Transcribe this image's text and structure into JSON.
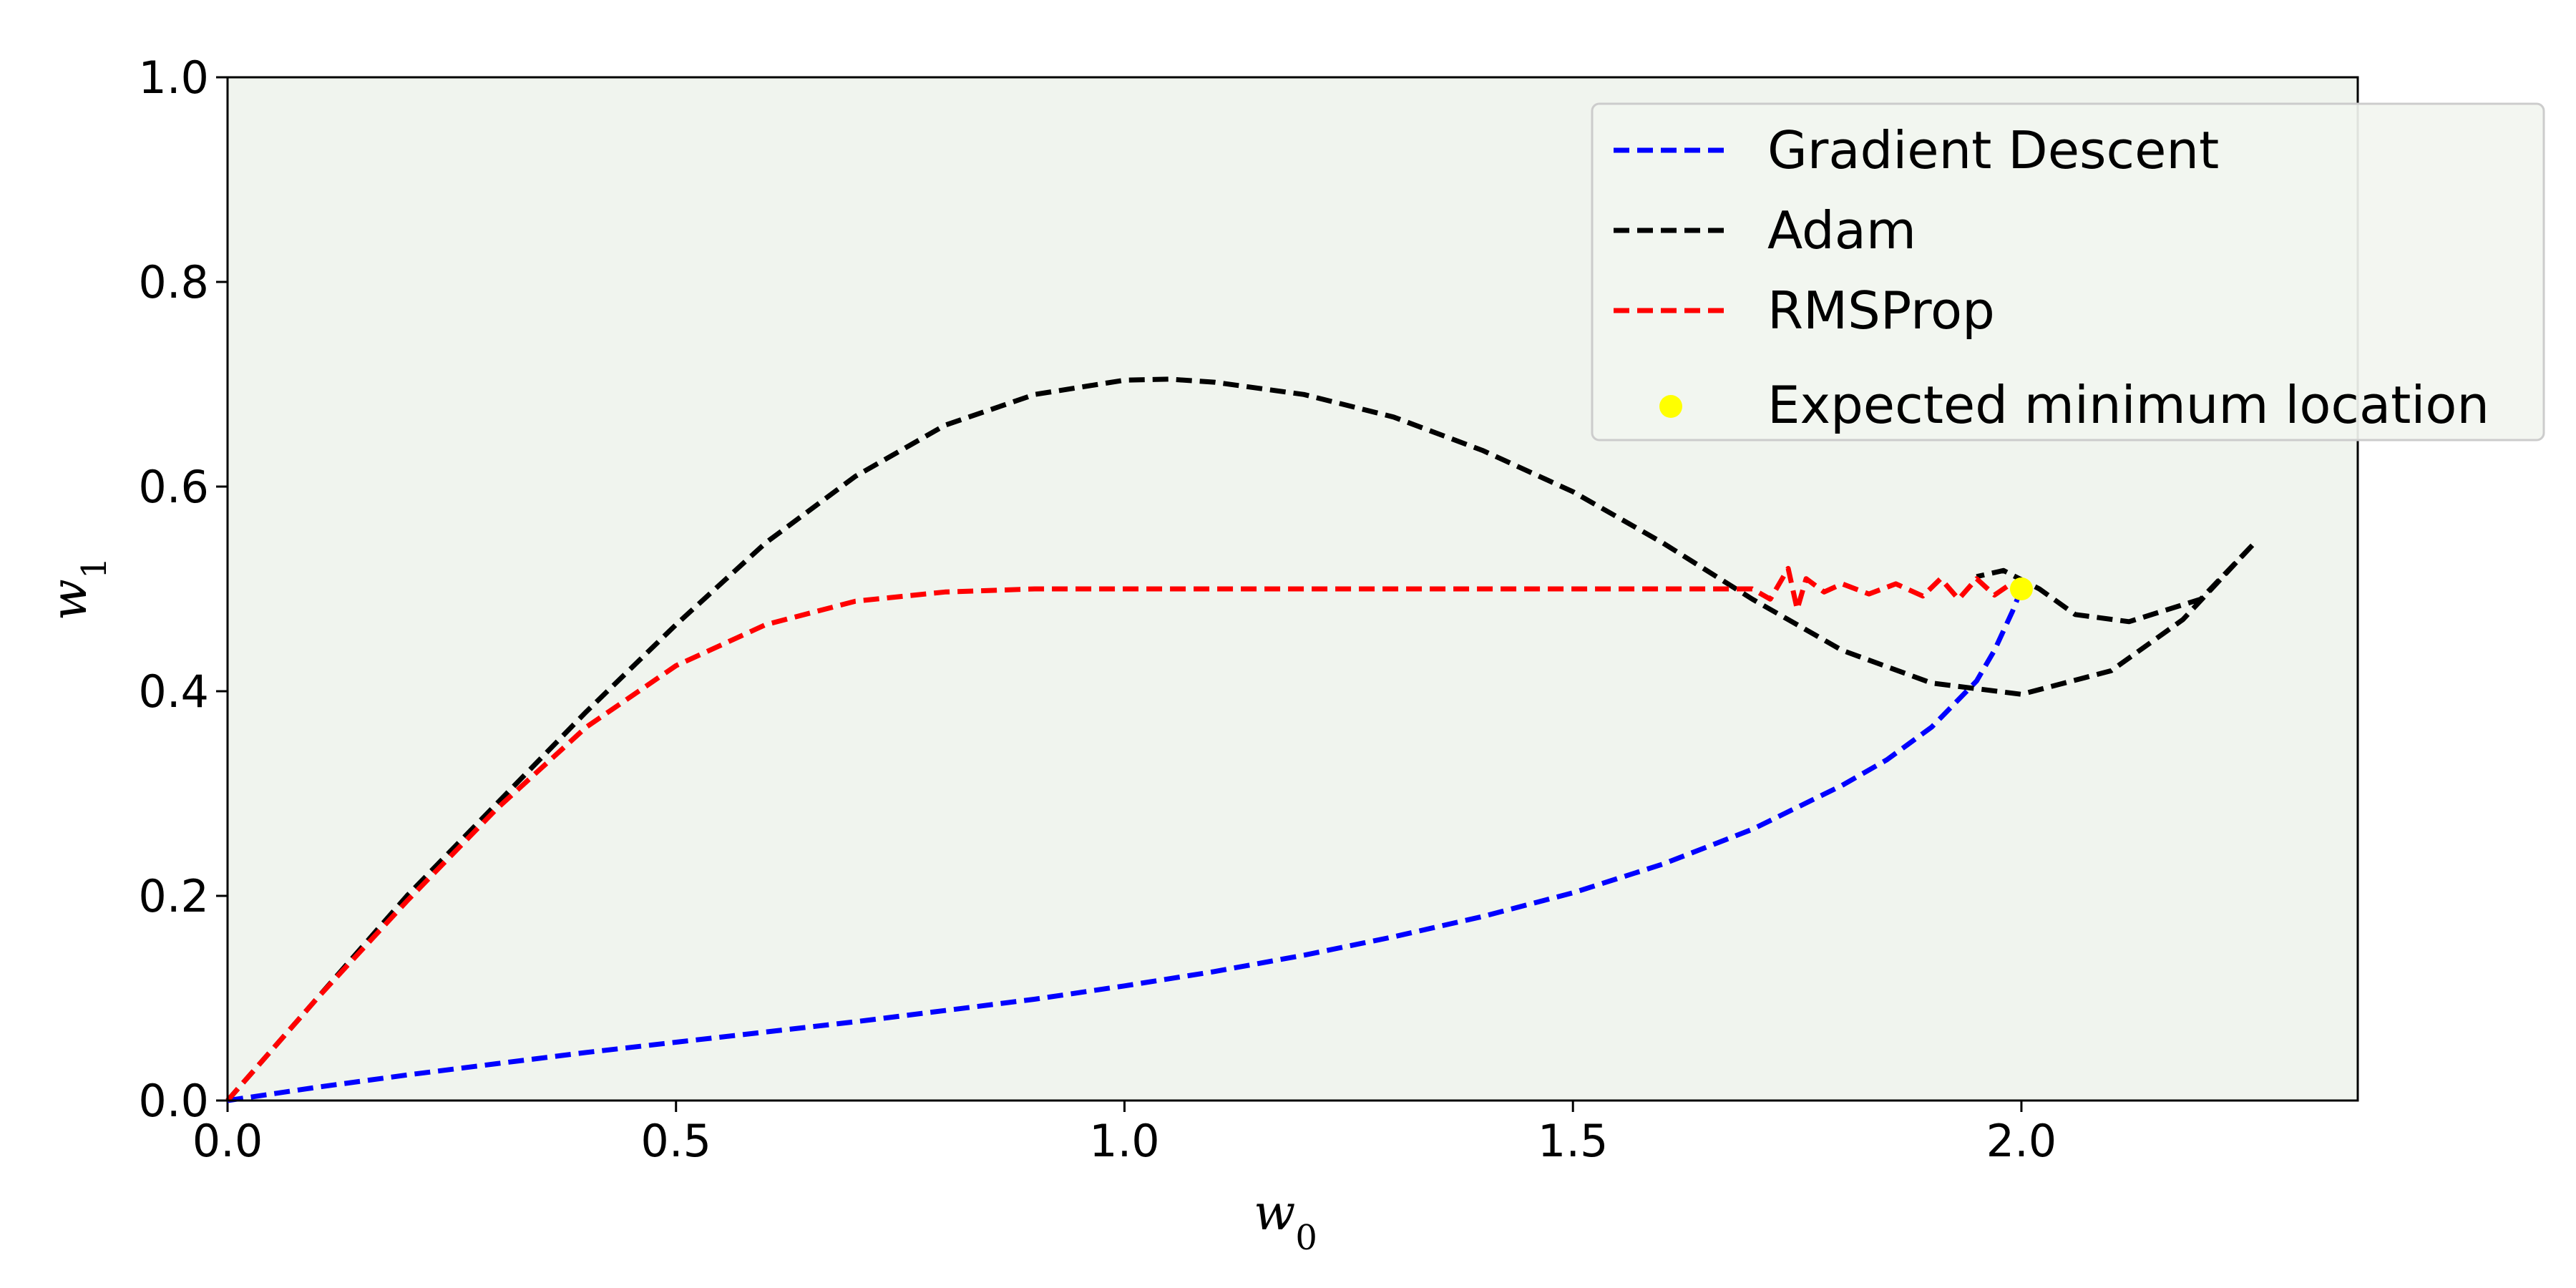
{
  "chart_data": {
    "type": "line",
    "title": "",
    "xlabel": "w",
    "xlabel_sub": "0",
    "ylabel": "w",
    "ylabel_sub": "1",
    "xlim": [
      0,
      2.375
    ],
    "ylim": [
      0,
      1.0
    ],
    "xticks": [
      "0.0",
      "0.5",
      "1.0",
      "1.5",
      "2.0"
    ],
    "yticks": [
      "0.0",
      "0.2",
      "0.4",
      "0.6",
      "0.8",
      "1.0"
    ],
    "grid": false,
    "background": "#f0f4ee",
    "legend_position": "top-right",
    "series": [
      {
        "name": "Gradient Descent",
        "color": "#0000ff",
        "style": "dashed",
        "x": [
          0,
          0.1,
          0.2,
          0.3,
          0.4,
          0.5,
          0.6,
          0.7,
          0.8,
          0.9,
          1.0,
          1.1,
          1.2,
          1.3,
          1.4,
          1.5,
          1.6,
          1.7,
          1.8,
          1.85,
          1.9,
          1.95,
          1.97,
          1.99,
          2.0
        ],
        "y": [
          0,
          0.013,
          0.025,
          0.036,
          0.047,
          0.057,
          0.067,
          0.077,
          0.088,
          0.099,
          0.112,
          0.126,
          0.142,
          0.16,
          0.18,
          0.203,
          0.231,
          0.265,
          0.308,
          0.333,
          0.365,
          0.41,
          0.44,
          0.478,
          0.5
        ]
      },
      {
        "name": "Adam",
        "color": "#000000",
        "style": "dashed",
        "x": [
          0,
          0.1,
          0.2,
          0.3,
          0.4,
          0.5,
          0.6,
          0.7,
          0.8,
          0.9,
          1.0,
          1.05,
          1.1,
          1.2,
          1.3,
          1.4,
          1.5,
          1.6,
          1.7,
          1.8,
          1.9,
          2.0,
          2.1,
          2.18,
          2.26,
          2.2,
          2.12,
          2.06,
          2.02,
          1.98,
          1.95
        ],
        "y": [
          0,
          0.1,
          0.2,
          0.29,
          0.38,
          0.465,
          0.545,
          0.61,
          0.66,
          0.69,
          0.704,
          0.705,
          0.702,
          0.69,
          0.668,
          0.635,
          0.595,
          0.545,
          0.49,
          0.44,
          0.408,
          0.397,
          0.42,
          0.47,
          0.545,
          0.49,
          0.468,
          0.475,
          0.5,
          0.518,
          0.512
        ]
      },
      {
        "name": "RMSProp",
        "color": "#ff0000",
        "style": "dashed",
        "x": [
          0,
          0.1,
          0.2,
          0.3,
          0.4,
          0.5,
          0.6,
          0.7,
          0.8,
          0.9,
          1.0,
          1.2,
          1.4,
          1.6,
          1.7,
          1.72,
          1.74,
          1.75,
          1.76,
          1.78,
          1.8,
          1.83,
          1.86,
          1.89,
          1.91,
          1.93,
          1.95,
          1.97,
          1.99,
          2.0
        ],
        "y": [
          0,
          0.1,
          0.195,
          0.285,
          0.365,
          0.425,
          0.465,
          0.488,
          0.497,
          0.5,
          0.5,
          0.5,
          0.5,
          0.5,
          0.5,
          0.49,
          0.52,
          0.48,
          0.51,
          0.497,
          0.505,
          0.495,
          0.505,
          0.493,
          0.51,
          0.49,
          0.51,
          0.494,
          0.506,
          0.5
        ]
      },
      {
        "name": "Expected minimum location",
        "type": "scatter",
        "color": "#ffff00",
        "x": [
          2.0
        ],
        "y": [
          0.5
        ]
      }
    ]
  }
}
